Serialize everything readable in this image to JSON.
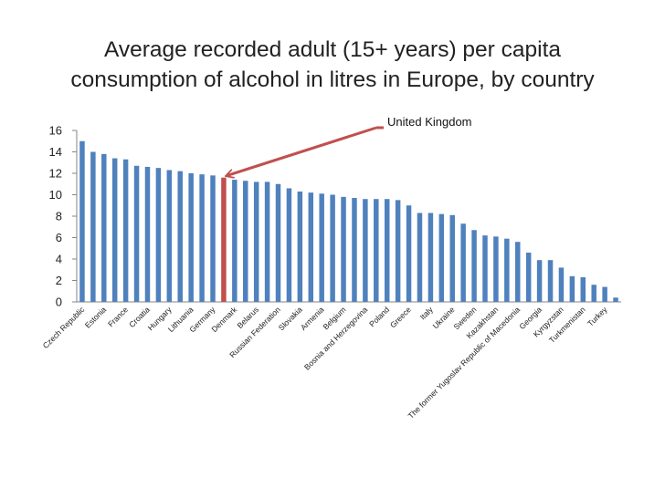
{
  "title_lines": [
    "Average recorded adult (15+ years) per capita",
    "consumption of alcohol in litres in Europe, by country"
  ],
  "colors": {
    "bar": "#4f81bd",
    "highlight": "#c0504d",
    "axis": "#868686"
  },
  "chart_data": {
    "type": "bar",
    "title": "Average recorded adult (15+ years) per capita consumption of alcohol in litres in Europe, by country",
    "xlabel": "",
    "ylabel": "",
    "ylim": [
      0,
      16
    ],
    "yticks": [
      0,
      2,
      4,
      6,
      8,
      10,
      12,
      14,
      16
    ],
    "grid": false,
    "highlight_index": 13,
    "annotation": {
      "text": "United Kingdom",
      "target_index": 13
    },
    "categories": [
      "Czech Republic",
      "",
      "Estonia",
      "",
      "France",
      "",
      "Croatia",
      "",
      "Hungary",
      "",
      "Lithuania",
      "",
      "Germany",
      "",
      "Denmark",
      "",
      "Belarus",
      "",
      "Russian Federation",
      "",
      "Slovakia",
      "",
      "Armenia",
      "",
      "Belgium",
      "",
      "Bosnia and Herzegovina",
      "",
      "Poland",
      "",
      "Greece",
      "",
      "Italy",
      "",
      "Ukraine",
      "",
      "Sweden",
      "",
      "Kazakhstan",
      "",
      "The former Yugoslav Republic of Macedonia",
      "",
      "Georgia",
      "",
      "Kyrgyzstan",
      "",
      "Turkmenistan",
      "",
      "Turkey",
      ""
    ],
    "values": [
      15.0,
      14.0,
      13.8,
      13.4,
      13.3,
      12.7,
      12.6,
      12.5,
      12.3,
      12.2,
      12.0,
      11.9,
      11.8,
      11.6,
      11.4,
      11.3,
      11.2,
      11.2,
      11.0,
      10.6,
      10.3,
      10.2,
      10.1,
      10.0,
      9.8,
      9.7,
      9.6,
      9.6,
      9.6,
      9.5,
      9.0,
      8.3,
      8.3,
      8.2,
      8.1,
      7.3,
      6.7,
      6.2,
      6.1,
      5.9,
      5.6,
      4.6,
      3.9,
      3.9,
      3.2,
      2.4,
      2.3,
      1.6,
      1.4,
      0.4
    ]
  }
}
